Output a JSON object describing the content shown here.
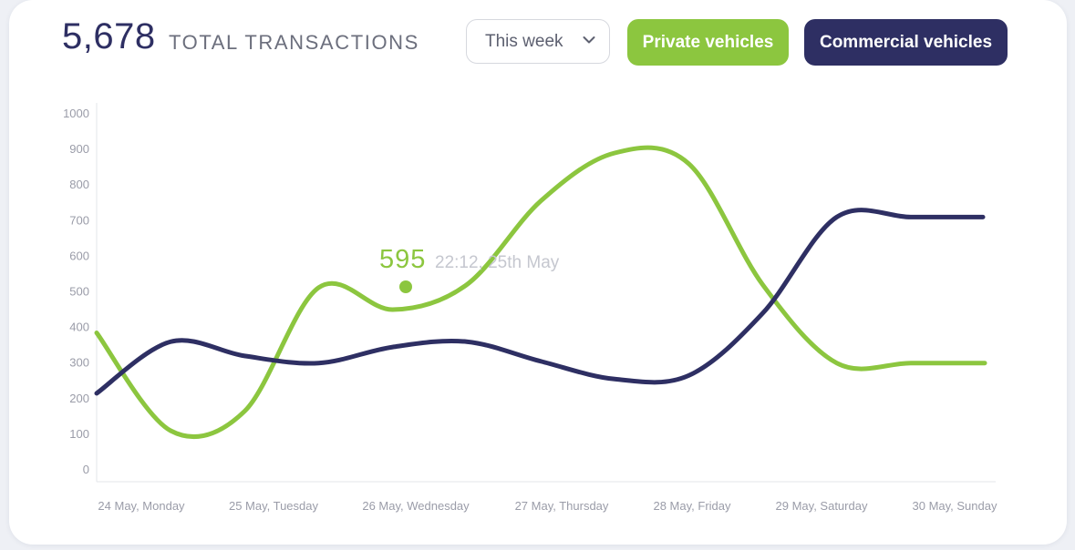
{
  "header": {
    "total_value": "5,678",
    "total_label": "TOTAL TRANSACTIONS",
    "period_dropdown": "This week",
    "filter_private": "Private vehicles",
    "filter_commercial": "Commercial vehicles"
  },
  "colors": {
    "private": "#8cc63f",
    "commercial": "#2e2f63",
    "axis": "#e3e5ea",
    "tick": "#9a9ca8"
  },
  "icons": {
    "dropdown": "chevron-down-icon"
  },
  "chart_data": {
    "type": "line",
    "title": "",
    "xlabel": "",
    "ylabel": "",
    "ylim": [
      0,
      1000
    ],
    "yticks": [
      0,
      100,
      200,
      300,
      400,
      500,
      600,
      700,
      800,
      900,
      1000
    ],
    "grid": false,
    "categories": [
      "24 May, Monday",
      "25 May, Tuesday",
      "26 May, Wednesday",
      "27 May, Thursday",
      "28 May, Friday",
      "29 May, Saturday",
      "30 May, Sunday"
    ],
    "x": [
      0,
      0.5,
      1,
      1.5,
      2,
      2.5,
      3,
      3.5,
      4,
      4.5,
      5,
      5.5,
      6
    ],
    "series": [
      {
        "name": "Private vehicles",
        "color": "#8cc63f",
        "values": [
          385,
          110,
          165,
          512,
          450,
          520,
          755,
          890,
          860,
          520,
          300,
          300,
          300
        ]
      },
      {
        "name": "Commercial vehicles",
        "color": "#2e2f63",
        "values": [
          215,
          360,
          320,
          300,
          345,
          360,
          305,
          255,
          265,
          440,
          710,
          710,
          710
        ]
      }
    ],
    "annotation": {
      "series": "Private vehicles",
      "x": 2.35,
      "value_label": "595",
      "time_label": "22:12, 25th May"
    }
  }
}
